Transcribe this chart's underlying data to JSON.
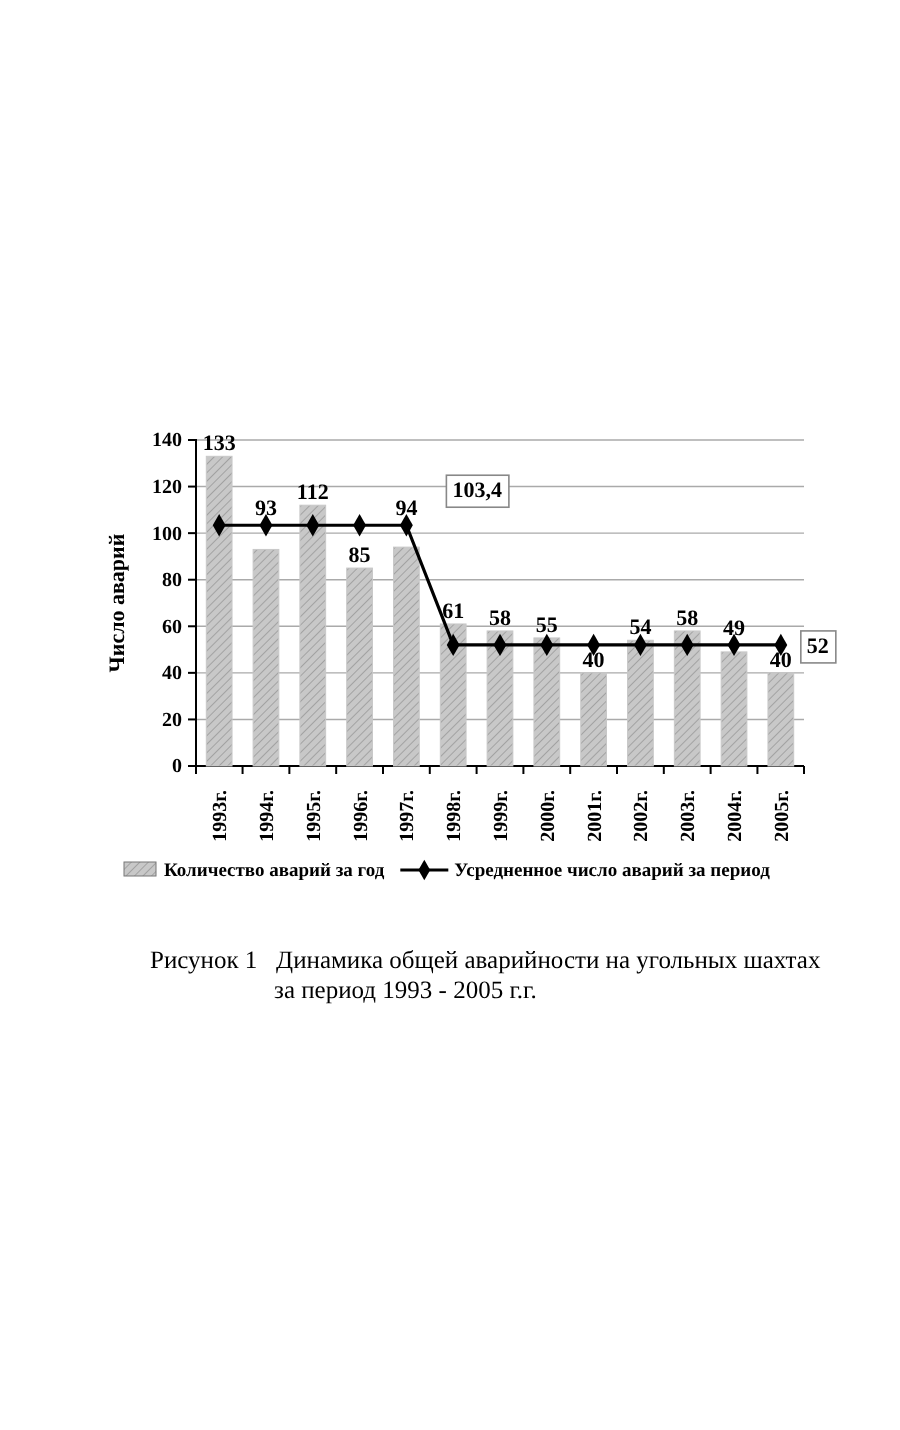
{
  "chart_data": {
    "type": "bar",
    "ylabel": "Число аварий",
    "categories": [
      "1993г.",
      "1994г.",
      "1995г.",
      "1996г.",
      "1997г.",
      "1998г.",
      "1999г.",
      "2000г.",
      "2001г.",
      "2002г.",
      "2003г.",
      "2004г.",
      "2005г."
    ],
    "series": [
      {
        "name": "Количество аварий за год",
        "color": "#c8c8c8",
        "values": [
          133,
          93,
          112,
          85,
          94,
          61,
          58,
          55,
          40,
          54,
          58,
          49,
          40
        ],
        "value_labels": [
          "133",
          "93",
          "112",
          "85",
          "94",
          "61",
          "58",
          "55",
          "40",
          "54",
          "58",
          "49",
          "40"
        ]
      },
      {
        "name": "Усредненное число аварий за период",
        "type": "line",
        "color": "#000000",
        "marker": "diamond",
        "values": [
          103.4,
          103.4,
          103.4,
          103.4,
          103.4,
          52,
          52,
          52,
          52,
          52,
          52,
          52,
          52
        ],
        "value_labels": [
          null,
          null,
          null,
          null,
          "103,4",
          null,
          null,
          null,
          null,
          null,
          null,
          null,
          "52"
        ]
      }
    ],
    "ylim": [
      0,
      140
    ],
    "yticks": [
      0,
      20,
      40,
      60,
      80,
      100,
      120,
      140
    ],
    "grid": "y",
    "legend": "bottom",
    "annotations": [
      "Рисунок 1   Динамика общей аварийности на угольных шахтах",
      "за период 1993 - 2005 г.г."
    ]
  }
}
